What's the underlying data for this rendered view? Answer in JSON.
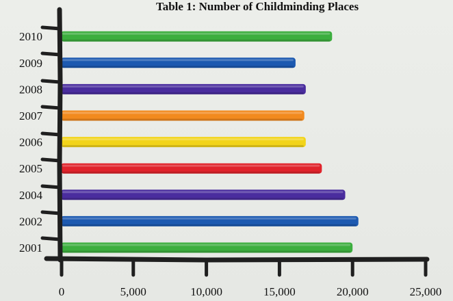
{
  "chart_data": {
    "type": "bar",
    "orientation": "horizontal",
    "title": "Table 1: Number of Childminding Places",
    "xlabel": "",
    "ylabel": "",
    "categories": [
      "2001",
      "2002",
      "2004",
      "2005",
      "2006",
      "2007",
      "2008",
      "2009",
      "2010"
    ],
    "values": [
      20000,
      20400,
      19500,
      17900,
      16800,
      16700,
      16800,
      16100,
      18600
    ],
    "colors": [
      "#3cae3e",
      "#1c59b0",
      "#4a2d9e",
      "#e0232b",
      "#f2d41a",
      "#f28a1e",
      "#4a2d9e",
      "#1c59b0",
      "#3cae3e"
    ],
    "x_ticks": [
      "0",
      "5,000",
      "10,000",
      "15,000",
      "20,000",
      "25,000"
    ],
    "xlim": [
      0,
      25000
    ],
    "grid": false,
    "legend": "none"
  }
}
